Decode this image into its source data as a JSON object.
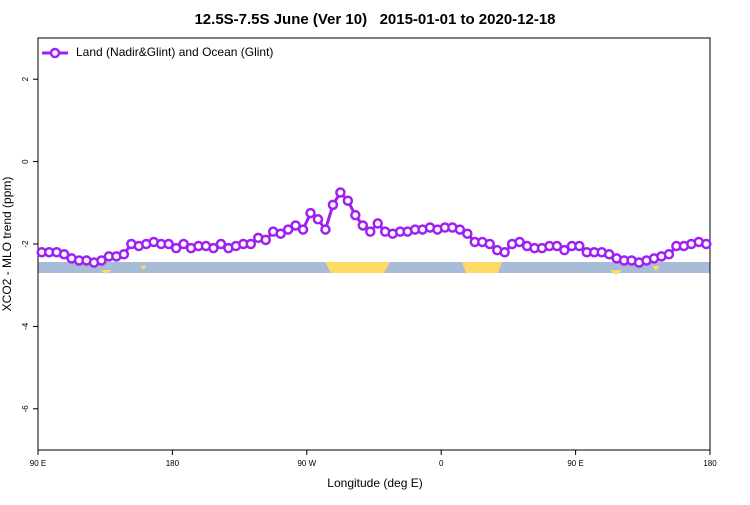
{
  "chart_data": {
    "type": "line",
    "title": "12.5S-7.5S June (Ver 10)   2015-01-01 to 2020-12-18",
    "xlabel": "Longitude (deg E)",
    "ylabel": "XCO2 - MLO trend (ppm)",
    "xlim": [
      90,
      540
    ],
    "xticks": [
      {
        "value": 90,
        "label": "90 E"
      },
      {
        "value": 180,
        "label": "180"
      },
      {
        "value": 270,
        "label": "90 W"
      },
      {
        "value": 360,
        "label": "0"
      },
      {
        "value": 450,
        "label": "90 E"
      },
      {
        "value": 540,
        "label": "180"
      }
    ],
    "ylim": [
      -7,
      3
    ],
    "yticks": [
      -6,
      -4,
      -2,
      0,
      2
    ],
    "legend": "top-left",
    "x": [
      92.5,
      97.5,
      102.5,
      107.5,
      112.5,
      117.5,
      122.5,
      127.5,
      132.5,
      137.5,
      142.5,
      147.5,
      152.5,
      157.5,
      162.5,
      167.5,
      172.5,
      177.5,
      182.5,
      187.5,
      192.5,
      197.5,
      202.5,
      207.5,
      212.5,
      217.5,
      222.5,
      227.5,
      232.5,
      237.5,
      242.5,
      247.5,
      252.5,
      257.5,
      262.5,
      267.5,
      272.5,
      277.5,
      282.5,
      287.5,
      292.5,
      297.5,
      302.5,
      307.5,
      312.5,
      317.5,
      322.5,
      327.5,
      332.5,
      337.5,
      342.5,
      347.5,
      352.5,
      357.5,
      362.5,
      367.5,
      372.5,
      377.5,
      382.5,
      387.5,
      392.5,
      397.5,
      402.5,
      407.5,
      412.5,
      417.5,
      422.5,
      427.5,
      432.5,
      437.5,
      442.5,
      447.5,
      452.5,
      457.5,
      462.5,
      467.5,
      472.5,
      477.5,
      482.5,
      487.5,
      492.5,
      497.5,
      502.5,
      507.5,
      512.5,
      517.5,
      522.5,
      527.5,
      532.5,
      537.5
    ],
    "series": [
      {
        "name": "Land (Nadir&Glint) and Ocean (Glint)",
        "color": "#a020f0",
        "values": [
          -2.2,
          -2.2,
          -2.2,
          -2.25,
          -2.35,
          -2.4,
          -2.4,
          -2.45,
          -2.4,
          -2.3,
          -2.3,
          -2.25,
          -2.0,
          -2.05,
          -2.0,
          -1.95,
          -2.0,
          -2.0,
          -2.1,
          -2.0,
          -2.1,
          -2.05,
          -2.05,
          -2.1,
          -2.0,
          -2.1,
          -2.05,
          -2.0,
          -2.0,
          -1.85,
          -1.9,
          -1.7,
          -1.75,
          -1.65,
          -1.55,
          -1.65,
          -1.25,
          -1.4,
          -1.65,
          -1.05,
          -0.75,
          -0.95,
          -1.3,
          -1.55,
          -1.7,
          -1.5,
          -1.7,
          -1.75,
          -1.7,
          -1.7,
          -1.65,
          -1.65,
          -1.6,
          -1.65,
          -1.6,
          -1.6,
          -1.65,
          -1.75,
          -1.95,
          -1.95,
          -2.0,
          -2.15,
          -2.2,
          -2.0,
          -1.95,
          -2.05,
          -2.1,
          -2.1,
          -2.05,
          -2.05,
          -2.15,
          -2.05,
          -2.05,
          -2.2,
          -2.2,
          -2.2,
          -2.25,
          -2.35,
          -2.4,
          -2.4,
          -2.45,
          -2.4,
          -2.35,
          -2.3,
          -2.25,
          -2.05,
          -2.05,
          -2.0,
          -1.95,
          -2.0
        ]
      }
    ]
  }
}
